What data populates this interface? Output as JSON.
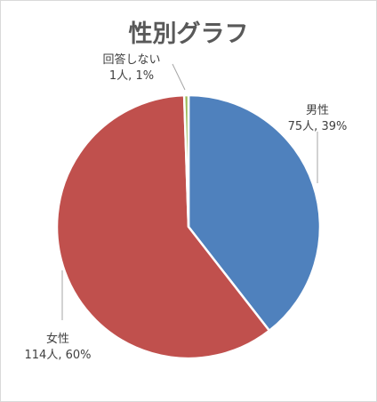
{
  "chart_data": {
    "type": "pie",
    "title": "性別グラフ",
    "slices": [
      {
        "name": "男性",
        "count": 75,
        "percent": 39,
        "label": "75人, 39%",
        "color": "#4f81bd"
      },
      {
        "name": "女性",
        "count": 114,
        "percent": 60,
        "label": "114人, 60%",
        "color": "#c0504d"
      },
      {
        "name": "回答しない",
        "count": 1,
        "percent": 1,
        "label": "1人, 1%",
        "color": "#9bbb59"
      }
    ],
    "legend": "none",
    "data_labels": "outside-with-leader-lines"
  }
}
